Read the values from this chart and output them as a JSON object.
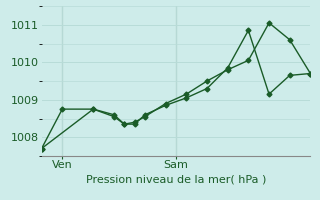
{
  "title": "Pression niveau de la mer( hPa )",
  "background_color": "#ceecea",
  "grid_color": "#b8dcd8",
  "line_color": "#1a5c28",
  "vline_color": "#7a9a88",
  "ylim": [
    1007.5,
    1011.5
  ],
  "yticks": [
    1008,
    1009,
    1010,
    1011
  ],
  "xlim": [
    0,
    26
  ],
  "x_ven_label": "Ven",
  "x_sam_label": "Sam",
  "ven_x": 2,
  "sam_x": 13,
  "line1_x": [
    0,
    2,
    5,
    7,
    8,
    9,
    10,
    12,
    14,
    16,
    18,
    20,
    22,
    24,
    26
  ],
  "line1_y": [
    1007.7,
    1008.75,
    1008.75,
    1008.55,
    1008.35,
    1008.35,
    1008.6,
    1008.85,
    1009.05,
    1009.3,
    1009.85,
    1010.85,
    1009.15,
    1009.65,
    1009.7
  ],
  "line2_x": [
    0,
    5,
    7,
    8,
    9,
    10,
    12,
    14,
    16,
    18,
    20,
    22,
    24,
    26
  ],
  "line2_y": [
    1007.7,
    1008.75,
    1008.6,
    1008.35,
    1008.4,
    1008.55,
    1008.9,
    1009.15,
    1009.5,
    1009.8,
    1010.05,
    1011.05,
    1010.6,
    1009.7
  ],
  "xlabel_fontsize": 8,
  "ylabel_fontsize": 8,
  "tick_fontsize": 8,
  "title_fontsize": 8
}
